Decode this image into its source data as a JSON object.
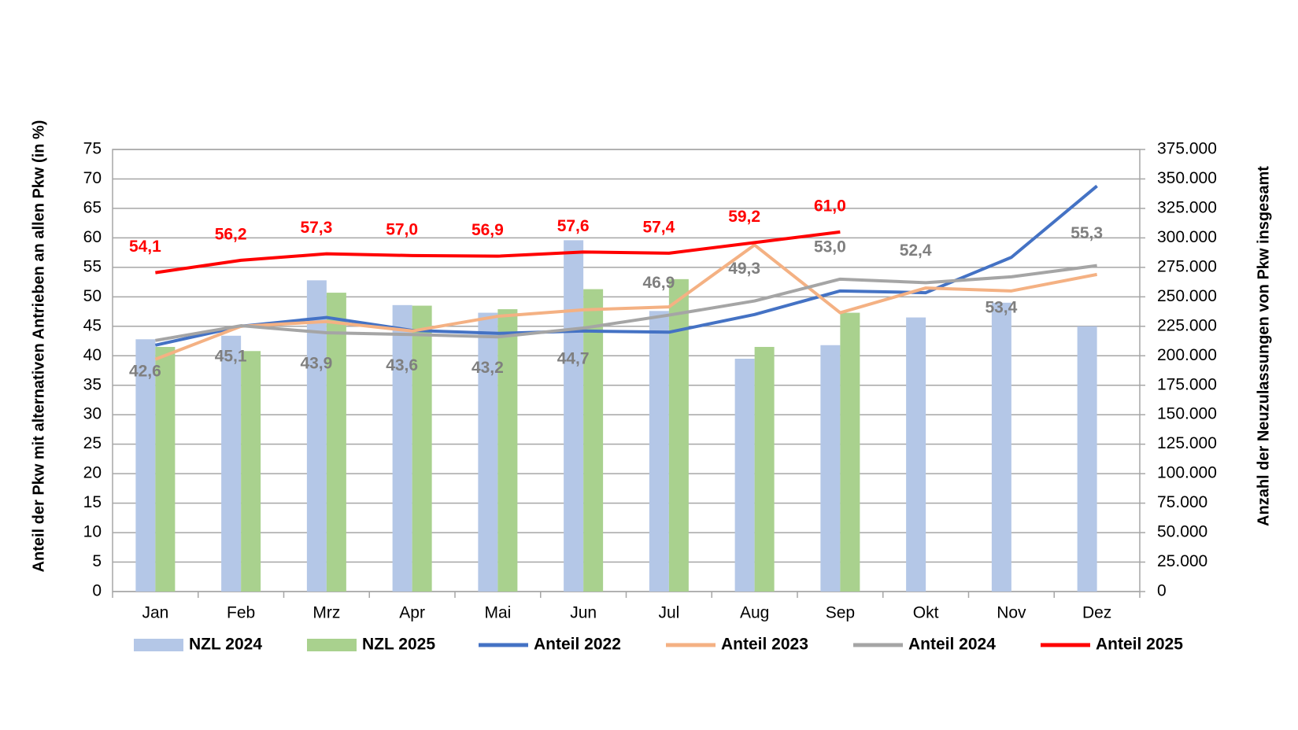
{
  "chart_data": {
    "type": "combo",
    "categories": [
      "Jan",
      "Feb",
      "Mrz",
      "Apr",
      "Mai",
      "Jun",
      "Jul",
      "Aug",
      "Sep",
      "Okt",
      "Nov",
      "Dez"
    ],
    "y_label": "Anteil der Pkw mit alternativen Antrieben an allen Pkw (in %)",
    "y2_label": "Anzahl der Neuzulassungen von Pkw insgesamt",
    "ylim": [
      0,
      75
    ],
    "yticks": [
      0,
      5,
      10,
      15,
      20,
      25,
      30,
      35,
      40,
      45,
      50,
      55,
      60,
      65,
      70,
      75
    ],
    "y2lim": [
      0,
      375000
    ],
    "y2ticks": [
      0,
      {
        "value": 25000,
        "label": "25.000"
      },
      {
        "value": 50000,
        "label": "50.000"
      },
      {
        "value": 75000,
        "label": "75.000"
      },
      {
        "value": 100000,
        "label": "100.000"
      },
      {
        "value": 125000,
        "label": "125.000"
      },
      {
        "value": 150000,
        "label": "150.000"
      },
      {
        "value": 175000,
        "label": "175.000"
      },
      {
        "value": 200000,
        "label": "200.000"
      },
      {
        "value": 225000,
        "label": "225.000"
      },
      {
        "value": 250000,
        "label": "250.000"
      },
      {
        "value": 275000,
        "label": "275.000"
      },
      {
        "value": 300000,
        "label": "300.000"
      },
      {
        "value": 325000,
        "label": "325.000"
      },
      {
        "value": 350000,
        "label": "350.000"
      },
      {
        "value": 375000,
        "label": "375.000"
      }
    ],
    "grid": true,
    "series": [
      {
        "name": "NZL 2024",
        "type": "bar",
        "axis": "y2",
        "color": "#b4c7e7",
        "values": [
          214000,
          217000,
          264000,
          243000,
          236500,
          298000,
          238000,
          197500,
          209000,
          232500,
          245000,
          225000
        ]
      },
      {
        "name": "NZL 2025",
        "type": "bar",
        "axis": "y2",
        "color": "#a9d18e",
        "values": [
          207500,
          204000,
          253500,
          242500,
          239500,
          256500,
          265000,
          207500,
          236500,
          null,
          null,
          null
        ]
      },
      {
        "name": "Anteil 2022",
        "type": "line",
        "color": "#4472c4",
        "values": [
          41.8,
          45.0,
          46.5,
          44.3,
          43.8,
          44.2,
          44.0,
          47.0,
          51.0,
          50.7,
          56.7,
          68.8
        ]
      },
      {
        "name": "Anteil 2023",
        "type": "line",
        "color": "#f4b183",
        "values": [
          39.4,
          45.0,
          45.8,
          44.2,
          46.7,
          47.8,
          48.3,
          58.8,
          47.3,
          51.5,
          51.0,
          53.8
        ]
      },
      {
        "name": "Anteil 2024",
        "type": "line",
        "color": "#a5a5a5",
        "label_color": "#7f7f7f",
        "values": [
          42.6,
          45.1,
          43.9,
          43.6,
          43.2,
          44.7,
          46.9,
          49.3,
          53.0,
          52.4,
          53.4,
          55.3
        ],
        "value_labels": [
          "42,6",
          "45,1",
          "43,9",
          "43,6",
          "43,2",
          "44,7",
          "46,9",
          "49,3",
          "53,0",
          "52,4",
          "53,4",
          "55,3"
        ]
      },
      {
        "name": "Anteil 2025",
        "type": "line",
        "color": "#ff0000",
        "label_color": "#ff0000",
        "values": [
          54.1,
          56.2,
          57.3,
          57.0,
          56.9,
          57.6,
          57.4,
          59.2,
          61.0,
          null,
          null,
          null
        ],
        "value_labels": [
          "54,1",
          "56,2",
          "57,3",
          "57,0",
          "56,9",
          "57,6",
          "57,4",
          "59,2",
          "61,0",
          null,
          null,
          null
        ]
      }
    ]
  }
}
